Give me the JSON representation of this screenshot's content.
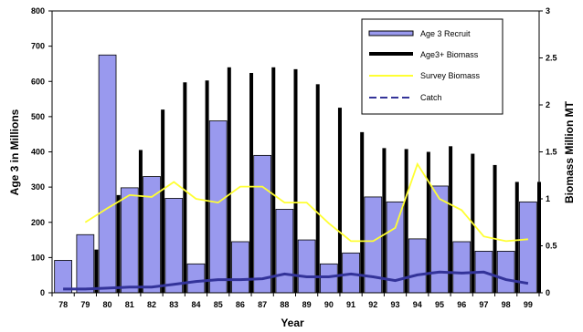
{
  "chart_data": {
    "type": "bar",
    "title": "",
    "xlabel": "Year",
    "ylabel": "Age 3 in Millions",
    "y2label": "Biomass Million MT",
    "categories": [
      "78",
      "79",
      "80",
      "81",
      "82",
      "83",
      "84",
      "85",
      "86",
      "87",
      "88",
      "89",
      "90",
      "91",
      "92",
      "93",
      "94",
      "95",
      "96",
      "97",
      "98",
      "99"
    ],
    "ylim": [
      0,
      800
    ],
    "y2lim": [
      0,
      3
    ],
    "yticks": [
      "0",
      "100",
      "200",
      "300",
      "400",
      "500",
      "600",
      "700",
      "800"
    ],
    "y2ticks": [
      "0",
      "0.5",
      "1",
      "1.5",
      "2",
      "2.5",
      "3"
    ],
    "legend_position": "top-right",
    "series": [
      {
        "name": "Age 3 Recruit",
        "kind": "bar",
        "axis": "left",
        "color": "#9999ee",
        "values": [
          92,
          165,
          675,
          298,
          330,
          268,
          82,
          488,
          145,
          390,
          237,
          150,
          82,
          113,
          272,
          258,
          153,
          303,
          145,
          118,
          118,
          258
        ]
      },
      {
        "name": "Age3+ Biomass",
        "kind": "bar",
        "axis": "right",
        "color": "#000000",
        "values": [
          null,
          0.46,
          1.04,
          1.52,
          1.95,
          2.24,
          2.26,
          2.4,
          2.34,
          2.4,
          2.38,
          2.22,
          1.97,
          1.71,
          1.54,
          1.53,
          1.5,
          1.56,
          1.48,
          1.36,
          1.18,
          1.18
        ]
      },
      {
        "name": "Survey Biomass",
        "kind": "line",
        "axis": "right",
        "color": "#ffff33",
        "values": [
          null,
          0.75,
          0.9,
          1.04,
          1.02,
          1.18,
          1.0,
          0.96,
          1.13,
          1.13,
          0.96,
          0.96,
          0.74,
          0.55,
          0.55,
          0.69,
          1.37,
          1.0,
          0.88,
          0.6,
          0.55,
          0.57
        ]
      },
      {
        "name": "Catch",
        "kind": "line",
        "axis": "right",
        "color": "#333399",
        "values": [
          0.04,
          0.04,
          0.05,
          0.06,
          0.06,
          0.09,
          0.12,
          0.14,
          0.14,
          0.15,
          0.2,
          0.17,
          0.17,
          0.2,
          0.17,
          0.13,
          0.19,
          0.22,
          0.21,
          0.22,
          0.14,
          0.1
        ]
      }
    ]
  }
}
